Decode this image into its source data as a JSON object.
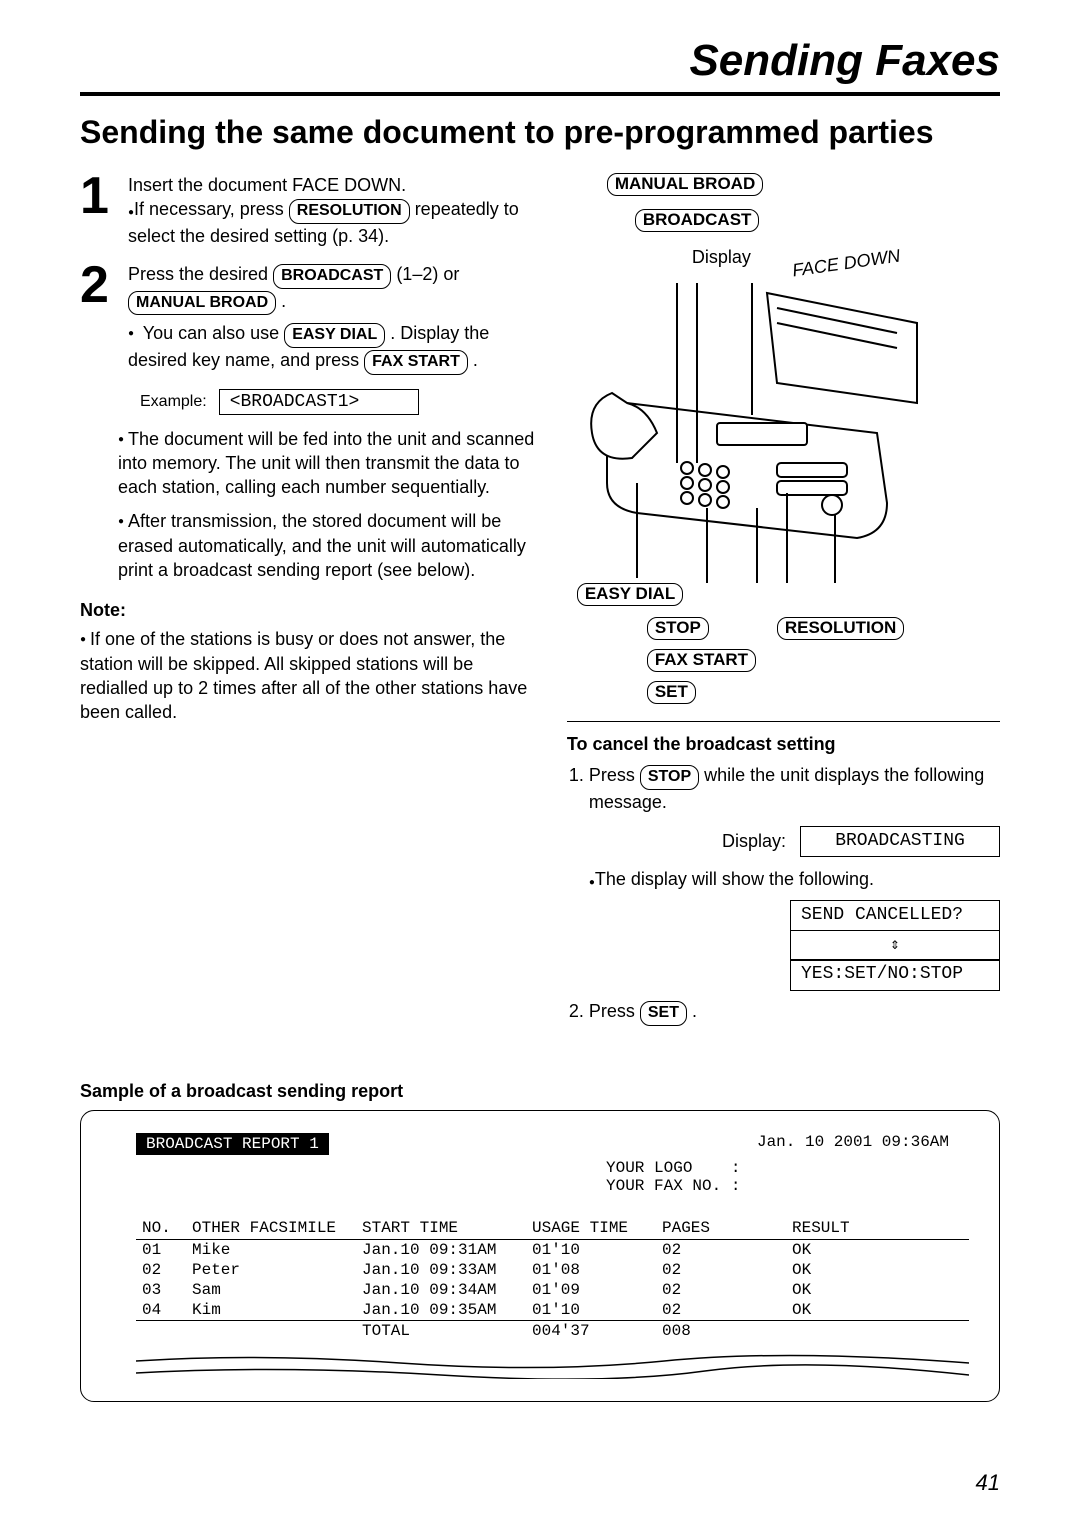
{
  "header": {
    "page_title": "Sending Faxes",
    "section_title": "Sending the same document to pre-programmed parties"
  },
  "steps": [
    {
      "num": "1",
      "lines": [
        "Insert the document FACE DOWN.",
        "If necessary, press ",
        " repeatedly to select the desired setting (p. 34)."
      ],
      "btn": "RESOLUTION"
    },
    {
      "num": "2",
      "pre": "Press the desired ",
      "btn1": "BROADCAST",
      "mid1": " (1–2) or ",
      "btn2": "MANUAL BROAD",
      "post": " .",
      "sub_pre": "You can also use ",
      "btn3": "EASY DIAL",
      "sub_mid": " . Display the desired key name, and press ",
      "btn4": "FAX START",
      "sub_post": " ."
    }
  ],
  "example": {
    "label": "Example:",
    "value": "<BROADCAST1>"
  },
  "step2_bullets": [
    "The document will be fed into the unit and scanned into memory. The unit will then transmit the data to each station, calling each number sequentially.",
    "After transmission, the stored document will be erased automatically, and the unit will automatically print a broadcast sending report (see below)."
  ],
  "note": {
    "head": "Note:",
    "body": "If one of the stations is busy or does not answer, the station will be skipped. All skipped stations will be redialled up to 2 times after all of the other stations have been called."
  },
  "diagram": {
    "labels": {
      "manual_broad": "MANUAL BROAD",
      "broadcast": "BROADCAST",
      "display": "Display",
      "face_down": "FACE DOWN",
      "easy_dial": "EASY DIAL",
      "stop": "STOP",
      "resolution": "RESOLUTION",
      "fax_start": "FAX START",
      "set": "SET"
    }
  },
  "cancel": {
    "head": "To cancel the broadcast setting",
    "step1_pre": "Press ",
    "btn_stop": "STOP",
    "step1_post": " while the unit displays the following message.",
    "display_label": "Display:",
    "lcd_broadcasting": "BROADCASTING",
    "sub": "The display will show the following.",
    "lcd_cancel": "SEND CANCELLED?",
    "lcd_yesno": "YES:SET/NO:STOP",
    "step2_pre": "Press ",
    "btn_set": "SET",
    "step2_post": " ."
  },
  "report": {
    "head": "Sample of a broadcast sending report",
    "title": "BROADCAST REPORT 1",
    "date": "Jan. 10 2001 09:36AM",
    "logo_label": "YOUR LOGO",
    "faxno_label": "YOUR FAX NO. :",
    "columns": [
      "NO.",
      "OTHER FACSIMILE",
      "START TIME",
      "USAGE TIME",
      "PAGES",
      "RESULT"
    ],
    "rows": [
      [
        "01",
        "Mike",
        "Jan.10 09:31AM",
        "01'10",
        "02",
        "OK"
      ],
      [
        "02",
        "Peter",
        "Jan.10 09:33AM",
        "01'08",
        "02",
        "OK"
      ],
      [
        "03",
        "Sam",
        "Jan.10 09:34AM",
        "01'09",
        "02",
        "OK"
      ],
      [
        "04",
        "Kim",
        "Jan.10 09:35AM",
        "01'10",
        "02",
        "OK"
      ]
    ],
    "total_label": "TOTAL",
    "total_usage": "004'37",
    "total_pages": "008"
  },
  "page_number": "41",
  "colors": {
    "text": "#000000",
    "bg": "#ffffff"
  }
}
